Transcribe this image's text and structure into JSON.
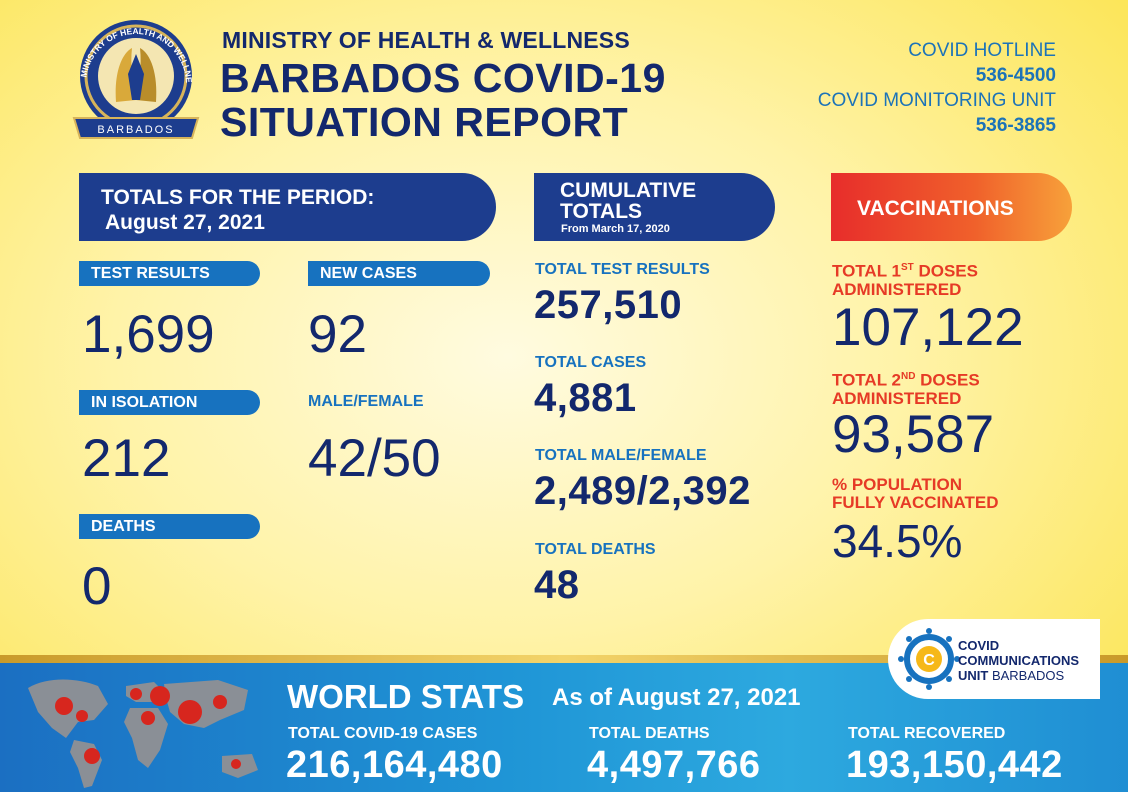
{
  "header": {
    "seal_lines": [
      "MINISTRY OF HEALTH AND WELLNESS",
      "BARBADOS"
    ],
    "ministry": "MINISTRY OF HEALTH & WELLNESS",
    "title_line1": "BARBADOS COVID-19",
    "title_line2": "SITUATION REPORT",
    "hotline_label": "COVID HOTLINE",
    "hotline_number": "536-4500",
    "monitoring_label": "COVID MONITORING UNIT",
    "monitoring_number": "536-3865"
  },
  "period": {
    "banner_line1": "TOTALS FOR THE PERIOD:",
    "banner_line2": "August 27, 2021",
    "test_results_label": "TEST RESULTS",
    "test_results": "1,699",
    "new_cases_label": "NEW CASES",
    "new_cases": "92",
    "isolation_label": "IN ISOLATION",
    "isolation": "212",
    "male_female_label": "MALE/FEMALE",
    "male_female": "42/50",
    "deaths_label": "DEATHS",
    "deaths": "0"
  },
  "cumulative": {
    "banner_line1": "CUMULATIVE TOTALS",
    "banner_line2": "From March 17, 2020",
    "test_results_label": "TOTAL TEST RESULTS",
    "test_results": "257,510",
    "cases_label": "TOTAL CASES",
    "cases": "4,881",
    "male_female_label": "TOTAL MALE/FEMALE",
    "male_female": "2,489/2,392",
    "deaths_label": "TOTAL DEATHS",
    "deaths": "48"
  },
  "vaccinations": {
    "banner": "VACCINATIONS",
    "first_label_a": "TOTAL 1",
    "first_label_sup": "ST",
    "first_label_b": " DOSES",
    "first_label_c": "ADMINISTERED",
    "first_doses": "107,122",
    "second_label_a": "TOTAL 2",
    "second_label_sup": "ND",
    "second_label_b": " DOSES",
    "second_label_c": "ADMINISTERED",
    "second_doses": "93,587",
    "pct_label_a": "% POPULATION",
    "pct_label_b": "FULLY VACCINATED",
    "pct": "34.5%"
  },
  "logo": {
    "line1": "COVID",
    "line2": "COMMUNICATIONS",
    "line3a": "UNIT",
    "line3b": " BARBADOS",
    "letter": "C"
  },
  "world": {
    "title": "WORLD STATS",
    "date": "As of August 27, 2021",
    "cases_label": "TOTAL COVID-19 CASES",
    "cases": "216,164,480",
    "deaths_label": "TOTAL DEATHS",
    "deaths": "4,497,766",
    "recovered_label": "TOTAL RECOVERED",
    "recovered": "193,150,442"
  },
  "colors": {
    "navy": "#13286d",
    "banner_blue": "#1d3d8e",
    "pill_blue": "#1772bf",
    "red": "#e63a26",
    "background_yellow": "#fbe34a"
  }
}
